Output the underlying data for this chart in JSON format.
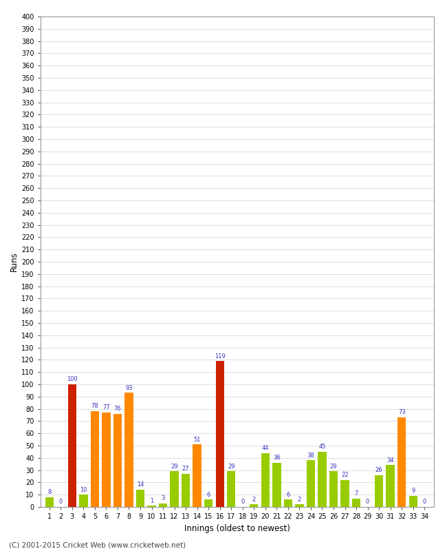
{
  "innings": [
    1,
    2,
    3,
    4,
    5,
    6,
    7,
    8,
    9,
    10,
    11,
    12,
    13,
    14,
    15,
    16,
    17,
    18,
    19,
    20,
    21,
    22,
    23,
    24,
    25,
    26,
    27,
    28,
    29,
    30,
    31,
    32,
    33,
    34
  ],
  "values": [
    8,
    0,
    100,
    10,
    78,
    77,
    76,
    93,
    14,
    1,
    3,
    29,
    27,
    51,
    6,
    119,
    29,
    0,
    2,
    44,
    36,
    6,
    2,
    38,
    45,
    29,
    22,
    7,
    0,
    26,
    34,
    73,
    9,
    0
  ],
  "colors": [
    "#99cc00",
    "#99cc00",
    "#cc2200",
    "#99cc00",
    "#ff8800",
    "#ff8800",
    "#ff8800",
    "#ff8800",
    "#99cc00",
    "#99cc00",
    "#99cc00",
    "#99cc00",
    "#99cc00",
    "#ff8800",
    "#99cc00",
    "#cc2200",
    "#99cc00",
    "#99cc00",
    "#99cc00",
    "#99cc00",
    "#99cc00",
    "#99cc00",
    "#99cc00",
    "#99cc00",
    "#99cc00",
    "#99cc00",
    "#99cc00",
    "#99cc00",
    "#99cc00",
    "#99cc00",
    "#99cc00",
    "#ff8800",
    "#99cc00",
    "#99cc00"
  ],
  "xlabel": "Innings (oldest to newest)",
  "ylabel": "Runs",
  "ylim": [
    0,
    400
  ],
  "ytick_step": 10,
  "footer": "(C) 2001-2015 Cricket Web (www.cricketweb.net)",
  "label_color": "#3333bb",
  "plot_bg_color": "#ffffff",
  "fig_bg_color": "#ffffff",
  "grid_color": "#dddddd",
  "spine_color": "#999999"
}
